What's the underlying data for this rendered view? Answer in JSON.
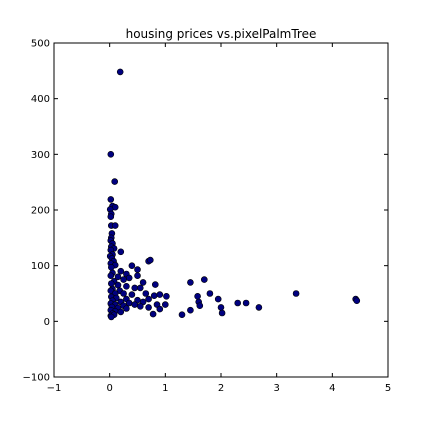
{
  "chart_data": {
    "type": "scatter",
    "title": "housing prices vs.pixelPalmTree",
    "xlabel": "",
    "ylabel": "",
    "xlim": [
      -1,
      5
    ],
    "ylim": [
      -100,
      500
    ],
    "grid": false,
    "legend": "none",
    "marker_color": "#000080",
    "marker_edge_color": "#000000",
    "x_ticks": [
      -1,
      0,
      1,
      2,
      3,
      4,
      5
    ],
    "y_ticks": [
      -100,
      0,
      100,
      200,
      300,
      400,
      500
    ],
    "x_tick_labels": [
      "−1",
      "0",
      "1",
      "2",
      "3",
      "4",
      "5"
    ],
    "y_tick_labels": [
      "−100",
      "0",
      "100",
      "200",
      "300",
      "400",
      "500"
    ],
    "points": [
      [
        0.19,
        448
      ],
      [
        0.02,
        300
      ],
      [
        0.09,
        251
      ],
      [
        0.02,
        219
      ],
      [
        0.05,
        207
      ],
      [
        0.1,
        205
      ],
      [
        0.01,
        201
      ],
      [
        0.03,
        193
      ],
      [
        0.02,
        188
      ],
      [
        0.03,
        172
      ],
      [
        0.1,
        172
      ],
      [
        0.04,
        158
      ],
      [
        0.03,
        150
      ],
      [
        0.02,
        145
      ],
      [
        0.05,
        140
      ],
      [
        0.03,
        134
      ],
      [
        0.08,
        131
      ],
      [
        0.02,
        128
      ],
      [
        0.2,
        125
      ],
      [
        0.05,
        120
      ],
      [
        0.01,
        117
      ],
      [
        0.04,
        113
      ],
      [
        0.07,
        108
      ],
      [
        0.02,
        104
      ],
      [
        0.1,
        101
      ],
      [
        0.03,
        97
      ],
      [
        0.4,
        100
      ],
      [
        0.5,
        93
      ],
      [
        0.2,
        90
      ],
      [
        0.3,
        85
      ],
      [
        0.05,
        87
      ],
      [
        0.02,
        82
      ],
      [
        0.15,
        80
      ],
      [
        0.35,
        78
      ],
      [
        0.25,
        75
      ],
      [
        0.5,
        82
      ],
      [
        0.08,
        72
      ],
      [
        0.6,
        70
      ],
      [
        0.03,
        68
      ],
      [
        0.7,
        108
      ],
      [
        0.73,
        110
      ],
      [
        0.82,
        66
      ],
      [
        0.15,
        65
      ],
      [
        0.3,
        63
      ],
      [
        0.45,
        60
      ],
      [
        0.55,
        60
      ],
      [
        0.05,
        58
      ],
      [
        0.02,
        55
      ],
      [
        0.18,
        55
      ],
      [
        0.1,
        50
      ],
      [
        0.25,
        50
      ],
      [
        0.4,
        48
      ],
      [
        0.65,
        50
      ],
      [
        0.8,
        46
      ],
      [
        0.9,
        48
      ],
      [
        1.02,
        45
      ],
      [
        0.03,
        44
      ],
      [
        0.12,
        42
      ],
      [
        0.3,
        40
      ],
      [
        0.5,
        38
      ],
      [
        0.7,
        40
      ],
      [
        0.05,
        37
      ],
      [
        0.2,
        35
      ],
      [
        0.35,
        33
      ],
      [
        0.6,
        35
      ],
      [
        0.02,
        32
      ],
      [
        0.1,
        30
      ],
      [
        0.25,
        28
      ],
      [
        0.45,
        30
      ],
      [
        0.55,
        27
      ],
      [
        0.85,
        30
      ],
      [
        1.0,
        30
      ],
      [
        0.04,
        26
      ],
      [
        0.15,
        24
      ],
      [
        0.3,
        23
      ],
      [
        0.7,
        25
      ],
      [
        0.9,
        22
      ],
      [
        0.02,
        20
      ],
      [
        0.1,
        18
      ],
      [
        0.2,
        17
      ],
      [
        0.78,
        13
      ],
      [
        0.05,
        14
      ],
      [
        0.02,
        10
      ],
      [
        0.08,
        12
      ],
      [
        0.03,
        8
      ],
      [
        1.3,
        12
      ],
      [
        1.45,
        20
      ],
      [
        1.45,
        70
      ],
      [
        1.58,
        45
      ],
      [
        1.6,
        35
      ],
      [
        1.62,
        28
      ],
      [
        1.7,
        75
      ],
      [
        1.8,
        50
      ],
      [
        1.95,
        40
      ],
      [
        2.0,
        25
      ],
      [
        2.02,
        15
      ],
      [
        2.3,
        33
      ],
      [
        2.45,
        33
      ],
      [
        2.68,
        25
      ],
      [
        3.35,
        50
      ],
      [
        4.42,
        40
      ],
      [
        4.44,
        37
      ]
    ]
  }
}
